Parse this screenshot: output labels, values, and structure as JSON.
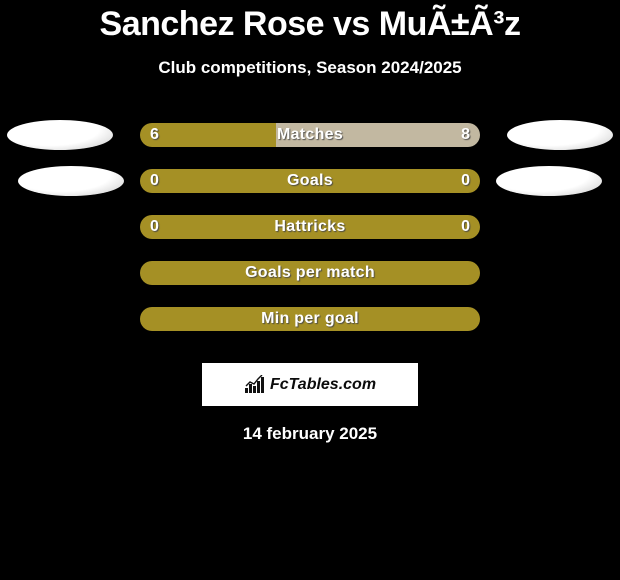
{
  "title": "Sanchez Rose vs MuÃ±Ã³z",
  "subtitle": "Club competitions, Season 2024/2025",
  "date": "14 february 2025",
  "logo_text": "FcTables.com",
  "colors": {
    "bar_olive": "#a59025",
    "bar_grey": "#c2b8a1",
    "background": "#000000",
    "text": "#ffffff"
  },
  "stats": [
    {
      "label": "Matches",
      "left_value": "6",
      "right_value": "8",
      "left_pct": 40,
      "right_pct": 60,
      "left_color": "#a59025",
      "right_color": "#c2b8a1",
      "show_values": true,
      "avatars": "row1"
    },
    {
      "label": "Goals",
      "left_value": "0",
      "right_value": "0",
      "left_pct": 100,
      "right_pct": 0,
      "left_color": "#a59025",
      "right_color": "#c2b8a1",
      "show_values": true,
      "avatars": "row2"
    },
    {
      "label": "Hattricks",
      "left_value": "0",
      "right_value": "0",
      "left_pct": 100,
      "right_pct": 0,
      "left_color": "#a59025",
      "right_color": "#c2b8a1",
      "show_values": true,
      "avatars": null
    },
    {
      "label": "Goals per match",
      "left_value": "",
      "right_value": "",
      "left_pct": 100,
      "right_pct": 0,
      "left_color": "#a59025",
      "right_color": "#c2b8a1",
      "show_values": false,
      "avatars": null
    },
    {
      "label": "Min per goal",
      "left_value": "",
      "right_value": "",
      "left_pct": 100,
      "right_pct": 0,
      "left_color": "#a59025",
      "right_color": "#c2b8a1",
      "show_values": false,
      "avatars": null
    }
  ]
}
